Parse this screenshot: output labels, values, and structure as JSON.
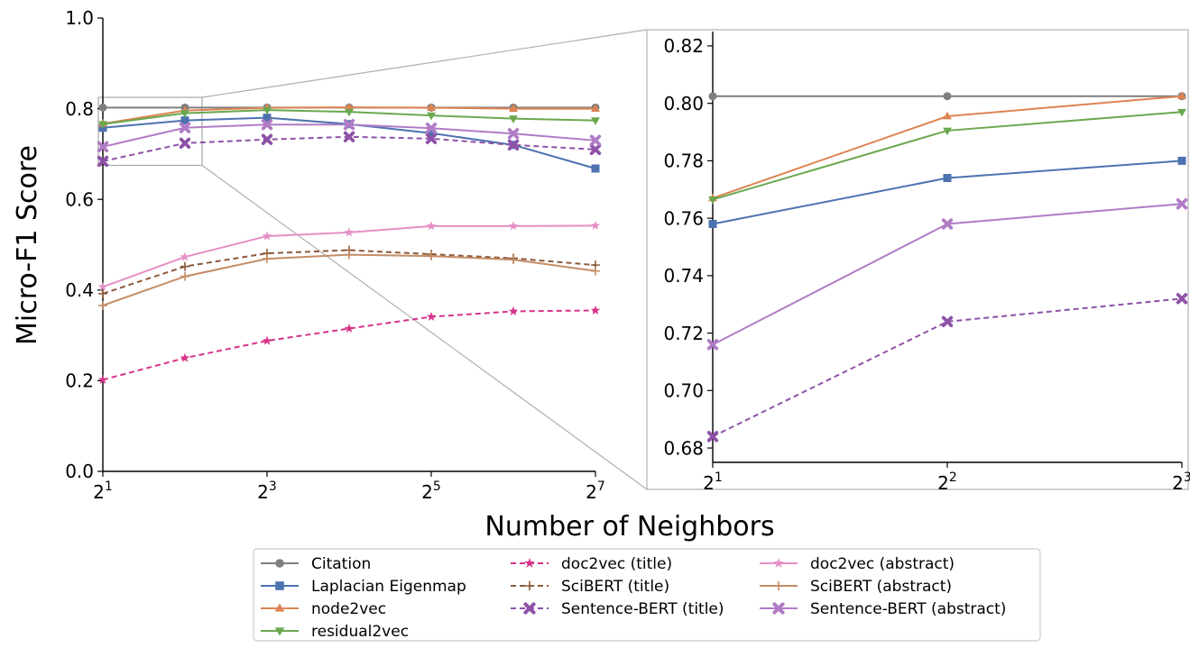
{
  "chart_data": [
    {
      "type": "line",
      "panel": "main",
      "xlabel": "Number of Neighbors",
      "ylabel": "Micro-F1 Score",
      "x_scale": "log2",
      "x": [
        2,
        4,
        8,
        16,
        32,
        64,
        128
      ],
      "x_ticks": [
        2,
        8,
        32,
        128
      ],
      "x_tick_labels": [
        {
          "base": "2",
          "exp": "1"
        },
        {
          "base": "2",
          "exp": "3"
        },
        {
          "base": "2",
          "exp": "5"
        },
        {
          "base": "2",
          "exp": "7"
        }
      ],
      "ylim": [
        0.0,
        1.0
      ],
      "y_ticks": [
        0.0,
        0.2,
        0.4,
        0.6,
        0.8,
        1.0
      ],
      "y_tick_labels": [
        "0.0",
        "0.2",
        "0.4",
        "0.6",
        "0.8",
        "1.0"
      ],
      "grid": false,
      "series": [
        {
          "name": "Citation",
          "color": "#7f7f7f",
          "marker": "circle",
          "dash": false,
          "values": [
            0.8025,
            0.8025,
            0.8025,
            0.8025,
            0.8025,
            0.8025,
            0.8025
          ]
        },
        {
          "name": "Laplacian Eigenmap",
          "color": "#4c72b0",
          "marker": "square",
          "dash": false,
          "values": [
            0.758,
            0.774,
            0.78,
            0.766,
            0.746,
            0.72,
            0.668
          ]
        },
        {
          "name": "node2vec",
          "color": "#dd8452",
          "marker": "triangle-up",
          "dash": false,
          "values": [
            0.767,
            0.796,
            0.802,
            0.803,
            0.802,
            0.8,
            0.8
          ]
        },
        {
          "name": "residual2vec",
          "color": "#6aa84f",
          "marker": "triangle-down",
          "dash": false,
          "values": [
            0.766,
            0.79,
            0.797,
            0.793,
            0.785,
            0.778,
            0.774
          ]
        },
        {
          "name": "doc2vec (title)",
          "color": "#d6338a",
          "marker": "star",
          "dash": true,
          "values": [
            0.202,
            0.25,
            0.288,
            0.315,
            0.341,
            0.353,
            0.355
          ]
        },
        {
          "name": "SciBERT (title)",
          "color": "#8c5a3c",
          "marker": "plus",
          "dash": true,
          "values": [
            0.392,
            0.452,
            0.481,
            0.488,
            0.479,
            0.47,
            0.455
          ]
        },
        {
          "name": "Sentence-BERT (title)",
          "color": "#8e52a8",
          "marker": "x",
          "dash": true,
          "values": [
            0.684,
            0.724,
            0.732,
            0.738,
            0.734,
            0.72,
            0.71
          ]
        },
        {
          "name": "doc2vec (abstract)",
          "color": "#e58fc7",
          "marker": "star",
          "dash": false,
          "values": [
            0.407,
            0.473,
            0.519,
            0.527,
            0.541,
            0.541,
            0.542
          ]
        },
        {
          "name": "SciBERT (abstract)",
          "color": "#c48c66",
          "marker": "plus",
          "dash": false,
          "values": [
            0.366,
            0.43,
            0.469,
            0.478,
            0.475,
            0.467,
            0.442
          ]
        },
        {
          "name": "Sentence-BERT (abstract)",
          "color": "#b07cc6",
          "marker": "x",
          "dash": false,
          "values": [
            0.716,
            0.758,
            0.765,
            0.765,
            0.757,
            0.745,
            0.73
          ]
        }
      ]
    },
    {
      "type": "line",
      "panel": "zoom",
      "x_scale": "log2",
      "x": [
        2,
        4,
        8
      ],
      "x_ticks": [
        2,
        4,
        8
      ],
      "x_tick_labels": [
        {
          "base": "2",
          "exp": "1"
        },
        {
          "base": "2",
          "exp": "2"
        },
        {
          "base": "2",
          "exp": "3"
        }
      ],
      "ylim": [
        0.675,
        0.825
      ],
      "y_ticks": [
        0.68,
        0.7,
        0.72,
        0.74,
        0.76,
        0.78,
        0.8,
        0.82
      ],
      "y_tick_labels": [
        "0.68",
        "0.70",
        "0.72",
        "0.74",
        "0.76",
        "0.78",
        "0.80",
        "0.82"
      ],
      "grid": false,
      "series": [
        {
          "name": "Citation",
          "color": "#7f7f7f",
          "marker": "circle",
          "dash": false,
          "values": [
            0.8025,
            0.8025,
            0.8025
          ]
        },
        {
          "name": "Laplacian Eigenmap",
          "color": "#4c72b0",
          "marker": "square",
          "dash": false,
          "values": [
            0.758,
            0.774,
            0.78
          ]
        },
        {
          "name": "node2vec",
          "color": "#dd8452",
          "marker": "triangle-up",
          "dash": false,
          "values": [
            0.767,
            0.7955,
            0.8025
          ]
        },
        {
          "name": "residual2vec",
          "color": "#6aa84f",
          "marker": "triangle-down",
          "dash": false,
          "values": [
            0.7665,
            0.7905,
            0.797
          ]
        },
        {
          "name": "Sentence-BERT (title)",
          "color": "#8e52a8",
          "marker": "x",
          "dash": true,
          "values": [
            0.684,
            0.724,
            0.732
          ]
        },
        {
          "name": "Sentence-BERT (abstract)",
          "color": "#b07cc6",
          "marker": "x",
          "dash": false,
          "values": [
            0.716,
            0.758,
            0.765
          ]
        }
      ]
    }
  ],
  "legend": {
    "placement": "bottom-center",
    "columns": 3,
    "order": [
      "Citation",
      "Laplacian Eigenmap",
      "node2vec",
      "residual2vec",
      "doc2vec (title)",
      "SciBERT (title)",
      "Sentence-BERT (title)",
      "doc2vec (abstract)",
      "SciBERT (abstract)",
      "Sentence-BERT (abstract)"
    ]
  }
}
